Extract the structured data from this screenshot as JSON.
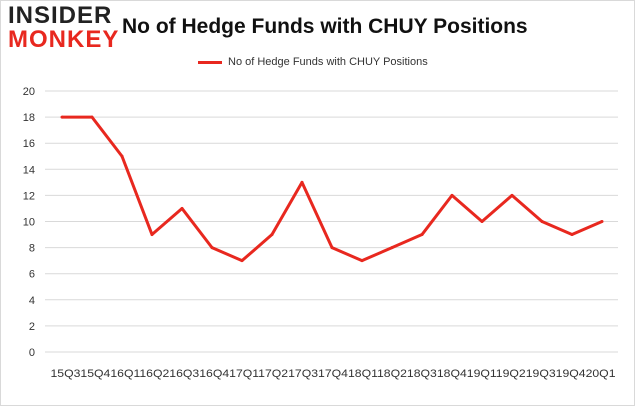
{
  "logo": {
    "line1": "INSIDER",
    "line2": "MONKEY"
  },
  "chart_data": {
    "type": "line",
    "title": "No of Hedge Funds with CHUY Positions",
    "xlabel": "",
    "ylabel": "",
    "categories": [
      "2015Q3",
      "2015Q4",
      "2016Q1",
      "2016Q2",
      "2016Q3",
      "2016Q4",
      "2017Q1",
      "2017Q2",
      "2017Q3",
      "2017Q4",
      "2018Q1",
      "2018Q2",
      "2018Q3",
      "2018Q4",
      "2019Q1",
      "2019Q2",
      "2019Q3",
      "2019Q4",
      "2020Q1"
    ],
    "x_tick_text": "15Q315Q416Q116Q216Q316Q417Q117Q217Q317Q418Q118Q218Q318Q419Q119Q219Q319Q420Q1",
    "series": [
      {
        "name": "No of Hedge Funds with CHUY Positions",
        "color": "#e8281f",
        "values": [
          18,
          18,
          15,
          9,
          11,
          8,
          7,
          9,
          13,
          8,
          7,
          8,
          9,
          12,
          10,
          12,
          10,
          9,
          10
        ]
      }
    ],
    "ylim": [
      0,
      20
    ],
    "yticks": [
      0,
      2,
      4,
      6,
      8,
      10,
      12,
      14,
      16,
      18,
      20
    ],
    "grid": true,
    "legend_position": "top"
  }
}
